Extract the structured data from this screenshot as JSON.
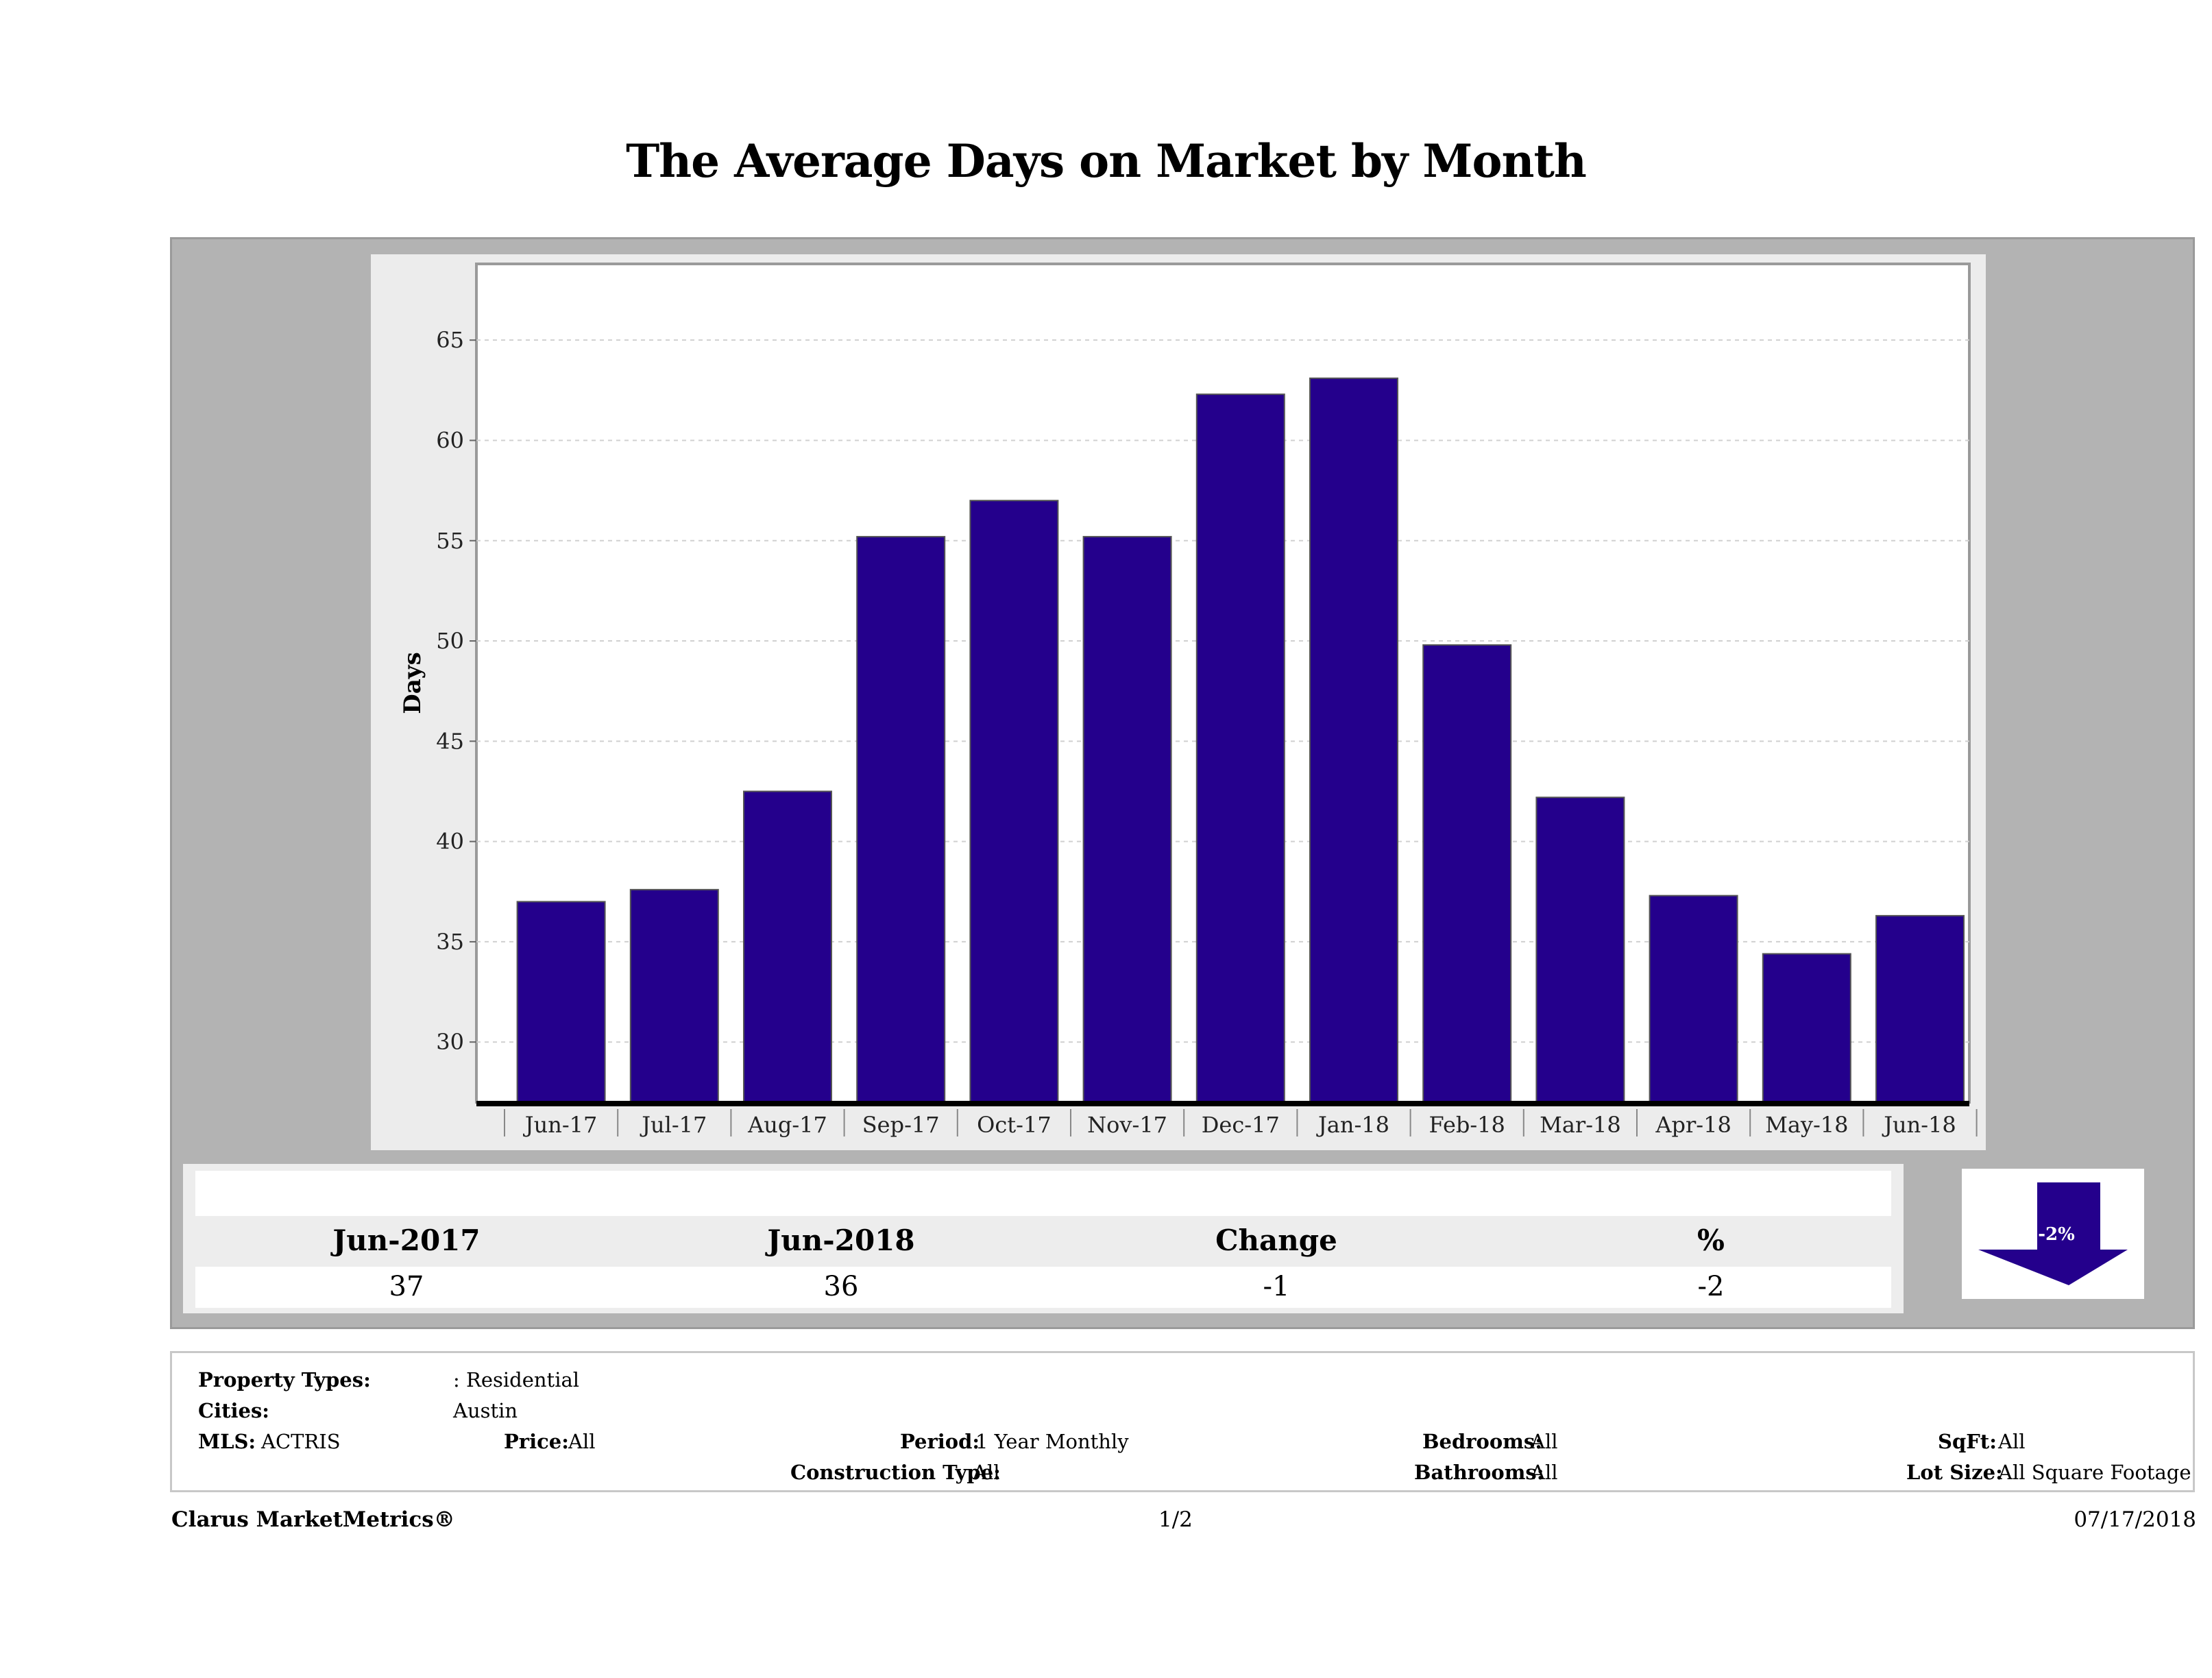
{
  "title": "The Average Days on Market by Month",
  "chart_data": {
    "type": "bar",
    "title": "The Average Days on Market by Month",
    "ylabel": "Days",
    "xlabel": "",
    "categories": [
      "Jun-17",
      "Jul-17",
      "Aug-17",
      "Sep-17",
      "Oct-17",
      "Nov-17",
      "Dec-17",
      "Jan-18",
      "Feb-18",
      "Mar-18",
      "Apr-18",
      "May-18",
      "Jun-18"
    ],
    "values": [
      37,
      37.6,
      42.5,
      55.2,
      57,
      55.2,
      62.3,
      63.1,
      49.8,
      42.2,
      37.3,
      34.4,
      36.3
    ],
    "yticks": [
      30,
      35,
      40,
      45,
      50,
      55,
      60,
      65
    ],
    "ylim": [
      27,
      68.8
    ],
    "grid": true,
    "bar_color": "#24008c"
  },
  "summary": {
    "headers": [
      "Jun-2017",
      "Jun-2018",
      "Change",
      "%"
    ],
    "values": [
      "37",
      "36",
      "-1",
      "-2"
    ],
    "badge": "-2%",
    "arrow_color": "#24008c"
  },
  "filters": {
    "property_types_label": "Property Types:",
    "property_types_value": ": Residential",
    "cities_label": "Cities:",
    "cities_value": "Austin",
    "mls_label": "MLS:",
    "mls_value": "ACTRIS",
    "price_label": "Price:",
    "price_value": "All",
    "period_label": "Period:",
    "period_value": "1 Year Monthly",
    "construction_label": "Construction Type:",
    "construction_value": "All",
    "bedrooms_label": "Bedrooms:",
    "bedrooms_value": "All",
    "bathrooms_label": "Bathrooms:",
    "bathrooms_value": "All",
    "sqft_label": "SqFt:",
    "sqft_value": "All",
    "lotsize_label": "Lot Size:",
    "lotsize_value": "All Square Footage"
  },
  "footer": {
    "brand": "Clarus MarketMetrics®",
    "page": "1/2",
    "date": "07/17/2018"
  }
}
